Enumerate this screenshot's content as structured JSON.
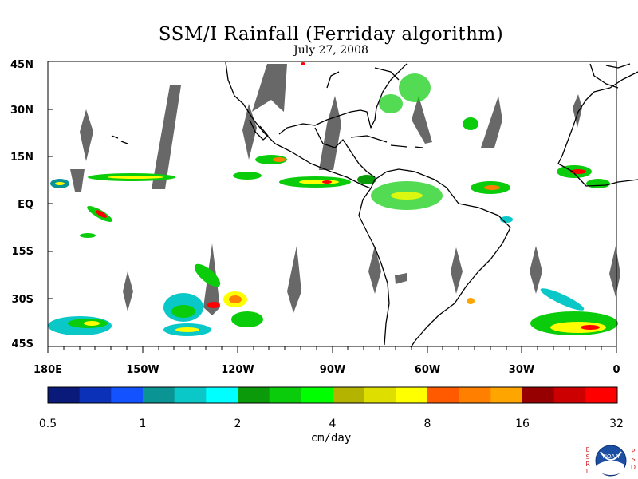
{
  "title": "SSM/I Rainfall (Ferriday algorithm)",
  "date": "July 27, 2008",
  "latitude_labels": [
    "45N",
    "30N",
    "15N",
    "EQ",
    "15S",
    "30S",
    "45S"
  ],
  "longitude_labels": [
    "180E",
    "150W",
    "120W",
    "90W",
    "60W",
    "30W",
    "0"
  ],
  "colorbar": {
    "units": "cm/day",
    "tick_labels": [
      "0.5",
      "1",
      "2",
      "4",
      "8",
      "16",
      "32"
    ],
    "colors": [
      "#0a1a7a",
      "#0a31b8",
      "#1253ff",
      "#0a9494",
      "#0ac8c8",
      "#00ffff",
      "#0a9a0a",
      "#0acc0a",
      "#00ff00",
      "#b4b400",
      "#dede00",
      "#ffff00",
      "#ff5a00",
      "#ff7f00",
      "#ffa500",
      "#960000",
      "#cc0000",
      "#ff0000"
    ]
  },
  "logo": {
    "left_letters": [
      "E",
      "S",
      "R",
      "L"
    ],
    "right_letters": [
      "P",
      "S",
      "D"
    ],
    "center_text": "NOAA"
  },
  "map_colors": {
    "ocean": "#ffffff",
    "coastline": "#000000",
    "no_data_swath": "#686868"
  }
}
